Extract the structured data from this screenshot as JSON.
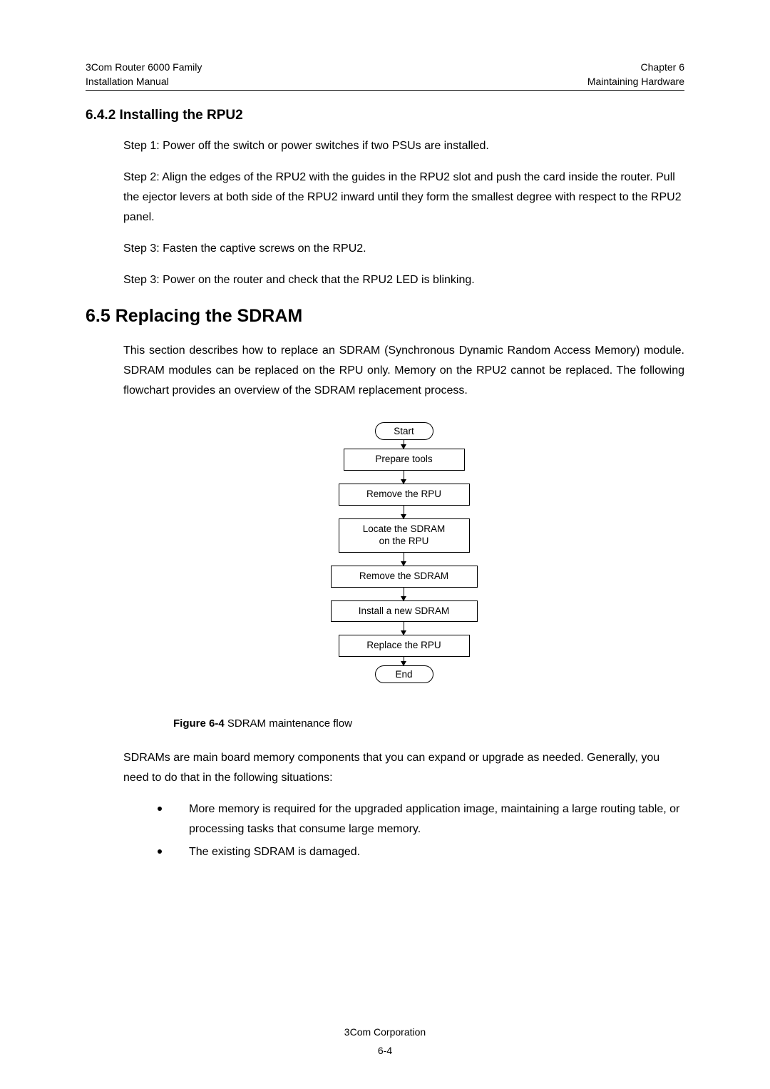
{
  "header": {
    "left_line1": "3Com Router 6000 Family",
    "left_line2": "Installation Manual",
    "right_line1": "Chapter 6",
    "right_line2": "Maintaining Hardware"
  },
  "section_642": "6.4.2  Installing the RPU2",
  "step1": "Step 1: Power off the switch or power switches if two PSUs are installed.",
  "step2": "Step 2: Align the edges of the RPU2 with the guides in the RPU2 slot and push the card inside the router. Pull the ejector levers at both side of the RPU2 inward until they form the smallest degree with respect to the RPU2 panel.",
  "step3a": "Step 3: Fasten the captive screws on the RPU2.",
  "step3b": "Step 3: Power on the router and check that the RPU2 LED is blinking.",
  "section_65": "6.5  Replacing the SDRAM",
  "para_65": "This section describes how to replace an SDRAM (Synchronous Dynamic Random Access Memory) module. SDRAM modules can be replaced on the RPU only. Memory on the RPU2 cannot be replaced. The following flowchart provides an overview of the SDRAM replacement process.",
  "flowchart": {
    "start": "Start",
    "step1": "Prepare tools",
    "step2": "Remove the RPU",
    "step3_line1": "Locate the SDRAM",
    "step3_line2": "on the RPU",
    "step4": "Remove the SDRAM",
    "step5": "Install a new SDRAM",
    "step6": "Replace the RPU",
    "end": "End"
  },
  "figure_caption_bold": "Figure 6-4",
  "figure_caption_rest": " SDRAM maintenance flow",
  "para_sdram": "SDRAMs are main board memory components that you can expand or upgrade as needed. Generally, you need to do that in the following situations:",
  "bullet1": "More memory is required for the upgraded application image, maintaining a large routing table, or processing tasks that consume large memory.",
  "bullet2": "The existing SDRAM is damaged.",
  "footer": "3Com Corporation",
  "page_number": "6-4"
}
